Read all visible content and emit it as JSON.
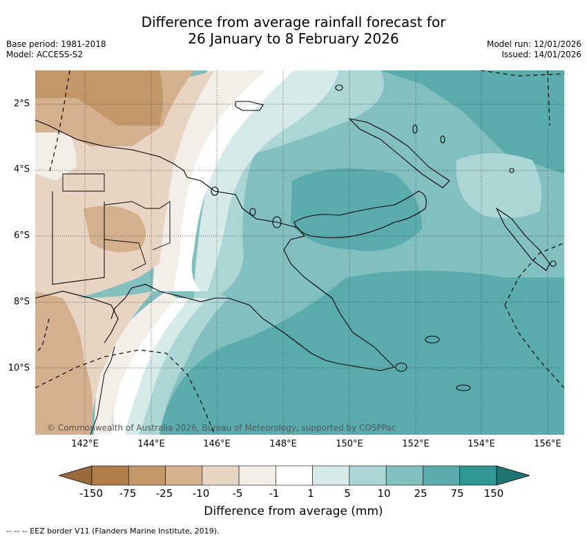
{
  "title": {
    "line1": "Difference from average rainfall forecast for",
    "line2": "26 January to 8 February 2026"
  },
  "meta": {
    "base_period": "Base period: 1981-2018",
    "model": "Model: ACCESS-S2",
    "model_run": "Model run: 12/01/2026",
    "issued": "Issued: 14/01/2026"
  },
  "map": {
    "region": "Papua New Guinea",
    "lat_labels": [
      "2°S",
      "4°S",
      "6°S",
      "8°S",
      "10°S"
    ],
    "lon_labels": [
      "142°E",
      "144°E",
      "146°E",
      "148°E",
      "150°E",
      "152°E",
      "154°E",
      "156°E"
    ],
    "copyright": "© Commonwealth of Australia 2026, Bureau of Meteorology, supported by COSPPac"
  },
  "colorbar": {
    "title": "Difference from average (mm)",
    "ticks": [
      "-150",
      "-75",
      "-25",
      "-10",
      "-5",
      "-1",
      "1",
      "5",
      "10",
      "25",
      "75",
      "150"
    ],
    "colors": [
      "#9b6a3a",
      "#b07c48",
      "#c39868",
      "#d5b08e",
      "#e8d4c2",
      "#f4eee8",
      "#ffffff",
      "#d6eaea",
      "#acd6d6",
      "#82c0c0",
      "#5aacac",
      "#2f9894",
      "#1f7572"
    ]
  },
  "footnote": "--  --  -- EEZ border V11 (Flanders Marine Institute, 2019)."
}
